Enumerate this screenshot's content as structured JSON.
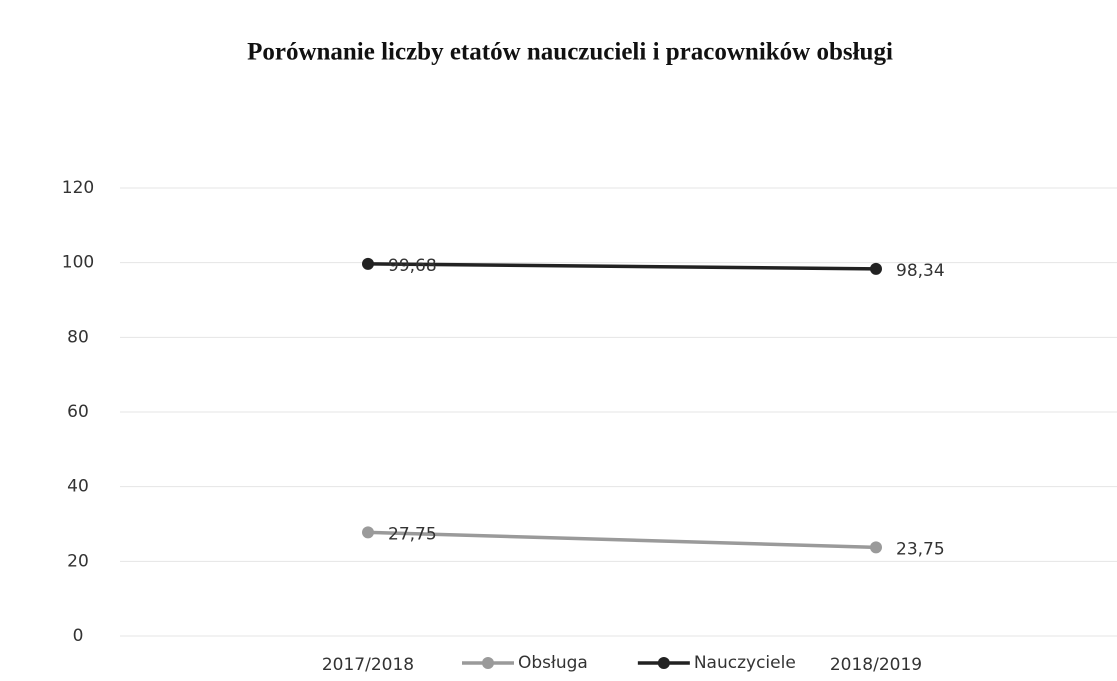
{
  "chart_data": {
    "type": "line",
    "title": "Porównanie liczby etatów nauczucieli i pracowników obsługi",
    "categories": [
      "2017/2018",
      "2018/2019"
    ],
    "series": [
      {
        "name": "Obsługa",
        "color": "#9a9a9a",
        "values": [
          27.75,
          23.75
        ],
        "value_labels": [
          "27,75",
          "23,75"
        ]
      },
      {
        "name": "Nauczyciele",
        "color": "#222222",
        "values": [
          99.68,
          98.34
        ],
        "value_labels": [
          "99,68",
          "98,34"
        ]
      }
    ],
    "ylim": [
      0,
      120
    ],
    "yticks": [
      0,
      20,
      40,
      60,
      80,
      100,
      120
    ],
    "grid": true
  }
}
